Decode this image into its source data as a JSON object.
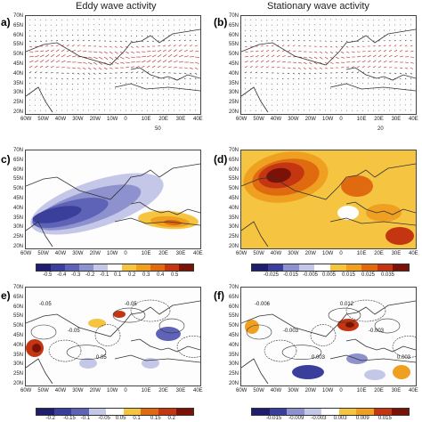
{
  "figure": {
    "col_titles": [
      "Eddy wave activity",
      "Stationary wave activity"
    ],
    "panel_labels": [
      "a)",
      "(b)",
      "c)",
      "(d)",
      "e)",
      "(f)"
    ],
    "lat_labels": [
      "70N",
      "65N",
      "60N",
      "55N",
      "50N",
      "45N",
      "40N",
      "35N",
      "30N",
      "25N",
      "20N"
    ],
    "lon_labels": [
      "60W",
      "50W",
      "40W",
      "30W",
      "20W",
      "10W",
      "0",
      "10E",
      "20E",
      "30E",
      "40E"
    ],
    "ref_vector_a": "50",
    "ref_vector_b": "20",
    "colorbar_c": {
      "ticks": [
        "-0.5",
        "-0.4",
        "-0.3",
        "-0.2",
        "-0.1",
        "0.1",
        "0.2",
        "0.3",
        "0.4",
        "0.5"
      ],
      "colors": [
        "#1f1e6e",
        "#3b3f9c",
        "#5e63b8",
        "#8d92cf",
        "#c4c7e8",
        "#ffffff",
        "#f5c542",
        "#f0a020",
        "#e06a10",
        "#c43512",
        "#7a1208"
      ]
    },
    "colorbar_d": {
      "ticks": [
        "-0.025",
        "-0.015",
        "-0.005",
        "0.005",
        "0.015",
        "0.025",
        "0.035"
      ],
      "colors": [
        "#1f1e6e",
        "#3b3f9c",
        "#8d92cf",
        "#c4c7e8",
        "#ffffff",
        "#f5c542",
        "#f0a020",
        "#e06a10",
        "#c43512",
        "#7a1208"
      ]
    },
    "colorbar_e": {
      "ticks": [
        "-0.2",
        "-0.15",
        "-0.1",
        "-0.05",
        "0.05",
        "0.1",
        "0.15",
        "0.2"
      ],
      "colors": [
        "#1f1e6e",
        "#3b3f9c",
        "#5e63b8",
        "#c4c7e8",
        "#ffffff",
        "#f5c542",
        "#e06a10",
        "#c43512",
        "#7a1208"
      ]
    },
    "colorbar_f": {
      "ticks": [
        "-0.015",
        "-0.009",
        "-0.003",
        "0.003",
        "0.009",
        "0.015"
      ],
      "colors": [
        "#1f1e6e",
        "#3b3f9c",
        "#8d92cf",
        "#c4c7e8",
        "#ffffff",
        "#f5c542",
        "#f0a020",
        "#c43512",
        "#7a1208"
      ]
    },
    "contour_labels_e": [
      "-0.05",
      "-0.05",
      "0.05",
      "-0.05"
    ],
    "contour_labels_f": [
      "-0.006",
      "-0.003",
      "0.003",
      "0.012",
      "-0.003",
      "0.003"
    ],
    "accent_colors": {
      "vector": "#b02020",
      "land_line": "#333333"
    }
  }
}
